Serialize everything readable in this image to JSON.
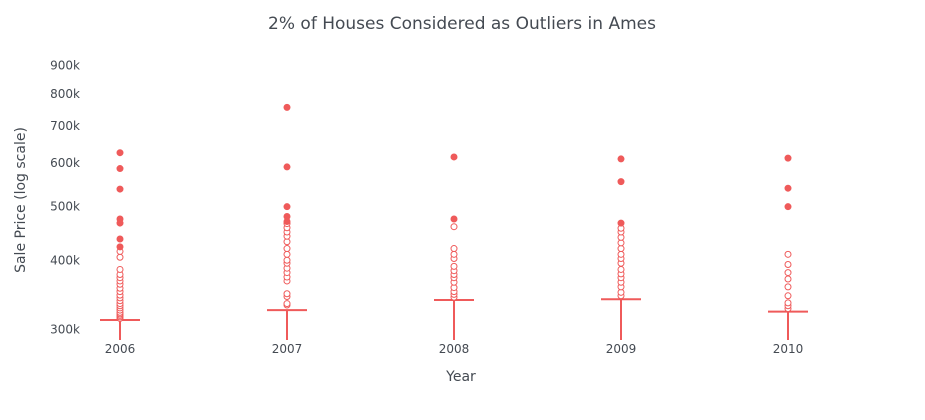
{
  "chart_data": {
    "type": "box",
    "title": "2% of Houses Considered as Outliers in Ames",
    "xlabel": "Year",
    "ylabel": "Sale Price (log scale)",
    "y_scale": "log",
    "ylim": [
      287000,
      960000
    ],
    "y_ticks": [
      300000,
      400000,
      500000,
      600000,
      700000,
      800000,
      900000
    ],
    "y_tick_labels": [
      "300k",
      "400k",
      "500k",
      "600k",
      "700k",
      "800k",
      "900k"
    ],
    "categories": [
      "2006",
      "2007",
      "2008",
      "2009",
      "2010"
    ],
    "marker_color": "#ef5a5a",
    "legend": "none",
    "grid": false,
    "groups": [
      {
        "year": "2006",
        "upper_fence": 312000,
        "outliers_open": [
          314000,
          316000,
          318000,
          320000,
          322000,
          325000,
          328000,
          331000,
          334000,
          338000,
          342000,
          346000,
          351000,
          356000,
          362000,
          367000,
          372000,
          377000,
          385000,
          405000,
          415000
        ],
        "outliers_filled": [
          423000,
          437000,
          467000,
          475000,
          538000,
          586000,
          626000
        ]
      },
      {
        "year": "2007",
        "upper_fence": 325000,
        "outliers_open": [
          332000,
          334000,
          344000,
          348000,
          367000,
          373000,
          380000,
          387000,
          395000,
          400000,
          410000,
          420000,
          432000,
          442000,
          450000,
          458000,
          466000
        ],
        "outliers_filled": [
          470000,
          480000,
          500000,
          590000,
          756000
        ]
      },
      {
        "year": "2008",
        "upper_fence": 339000,
        "outliers_open": [
          343000,
          347000,
          351000,
          357000,
          365000,
          372000,
          377000,
          383000,
          390000,
          403000,
          410000,
          420000,
          460000
        ],
        "outliers_filled": [
          475000,
          615000
        ]
      },
      {
        "year": "2009",
        "upper_fence": 340000,
        "outliers_open": [
          345000,
          350000,
          358000,
          365000,
          372000,
          378000,
          385000,
          395000,
          403000,
          410000,
          420000,
          430000,
          440000,
          450000,
          457000
        ],
        "outliers_filled": [
          467000,
          555000,
          610000
        ]
      },
      {
        "year": "2010",
        "upper_fence": 323000,
        "outliers_open": [
          327000,
          331000,
          335000,
          345000,
          358000,
          370000,
          380000,
          393000,
          410000
        ],
        "outliers_filled": [
          500000,
          540000,
          612000
        ]
      }
    ]
  }
}
